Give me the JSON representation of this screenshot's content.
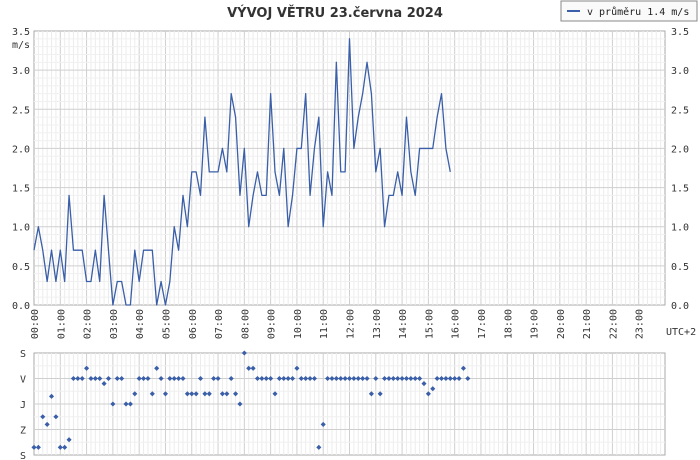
{
  "chart_data": [
    {
      "type": "line",
      "title": "VÝVOJ VĚTRU  23.června 2024",
      "ylabel": "m/s",
      "xlabel_right": "UTC+2",
      "legend": {
        "label": "v průměru 1.4 m/s",
        "placement": "top-right",
        "color": "#3a5fa8"
      },
      "ylim": [
        0,
        3.5
      ],
      "yticks": [
        "0.0",
        "0.5",
        "1.0",
        "1.5",
        "2.0",
        "2.5",
        "3.0",
        "3.5"
      ],
      "xticks": [
        "00:00",
        "01:00",
        "02:00",
        "03:00",
        "04:00",
        "05:00",
        "06:00",
        "07:00",
        "08:00",
        "09:00",
        "10:00",
        "11:00",
        "12:00",
        "13:00",
        "14:00",
        "15:00",
        "16:00",
        "17:00",
        "18:00",
        "19:00",
        "20:00",
        "21:00",
        "22:00",
        "23:00"
      ],
      "x_interval_minutes": 10,
      "grid": true,
      "series": [
        {
          "values": [
            0.7,
            1.0,
            0.7,
            0.3,
            0.7,
            0.3,
            0.7,
            0.3,
            1.4,
            0.7,
            0.7,
            0.7,
            0.3,
            0.3,
            0.7,
            0.3,
            1.4,
            0.7,
            0.0,
            0.3,
            0.3,
            0.0,
            0.0,
            0.7,
            0.3,
            0.7,
            0.7,
            0.7,
            0.0,
            0.3,
            0.0,
            0.3,
            1.0,
            0.7,
            1.4,
            1.0,
            1.7,
            1.7,
            1.4,
            2.4,
            1.7,
            1.7,
            1.7,
            2.0,
            1.7,
            2.7,
            2.4,
            1.4,
            2.0,
            1.0,
            1.4,
            1.7,
            1.4,
            1.4,
            2.7,
            1.7,
            1.4,
            2.0,
            1.0,
            1.4,
            2.0,
            2.0,
            2.7,
            1.4,
            2.0,
            2.4,
            1.0,
            1.7,
            1.4,
            3.1,
            1.7,
            1.7,
            3.4,
            2.0,
            2.4,
            2.7,
            3.1,
            2.7,
            1.7,
            2.0,
            1.0,
            1.4,
            1.4,
            1.7,
            1.4,
            2.4,
            1.7,
            1.4,
            2.0,
            2.0,
            2.0,
            2.0,
            2.4,
            2.7,
            2.0,
            1.7
          ]
        }
      ]
    },
    {
      "type": "scatter",
      "yticks": [
        "S",
        "V",
        "J",
        "Z",
        "S"
      ],
      "series": [
        {
          "values": [
            0.15,
            0.15,
            0.75,
            0.6,
            1.15,
            0.75,
            0.15,
            0.15,
            0.3,
            1.5,
            1.5,
            1.5,
            1.7,
            1.5,
            1.5,
            1.5,
            1.4,
            1.5,
            1.0,
            1.5,
            1.5,
            1.0,
            1.0,
            1.2,
            1.5,
            1.5,
            1.5,
            1.2,
            1.7,
            1.5,
            1.2,
            1.5,
            1.5,
            1.5,
            1.5,
            1.2,
            1.2,
            1.2,
            1.5,
            1.2,
            1.2,
            1.5,
            1.5,
            1.2,
            1.2,
            1.5,
            1.2,
            1.0,
            2.0,
            1.7,
            1.7,
            1.5,
            1.5,
            1.5,
            1.5,
            1.2,
            1.5,
            1.5,
            1.5,
            1.5,
            1.7,
            1.5,
            1.5,
            1.5,
            1.5,
            0.15,
            0.6,
            1.5,
            1.5,
            1.5,
            1.5,
            1.5,
            1.5,
            1.5,
            1.5,
            1.5,
            1.5,
            1.2,
            1.5,
            1.2,
            1.5,
            1.5,
            1.5,
            1.5,
            1.5,
            1.5,
            1.5,
            1.5,
            1.5,
            1.4,
            1.2,
            1.3,
            1.5,
            1.5,
            1.5,
            1.5,
            1.5,
            1.5,
            1.7,
            1.5
          ]
        }
      ]
    }
  ]
}
